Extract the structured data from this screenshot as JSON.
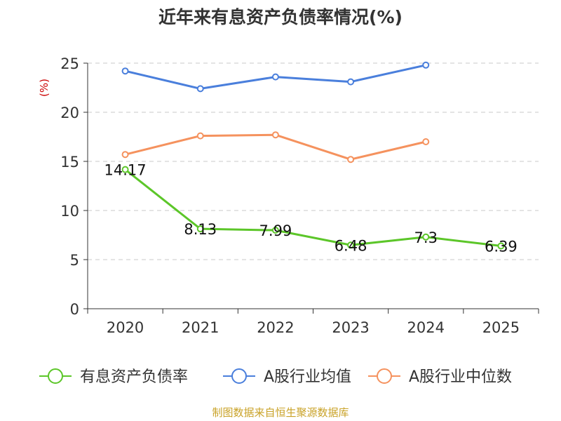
{
  "chart_data": {
    "type": "line",
    "title": "近年来有息资产负债率情况(%)",
    "ylabel": "(%)",
    "xlabel": "",
    "ylim": [
      0,
      25
    ],
    "yticks": [
      0,
      5,
      10,
      15,
      20,
      25
    ],
    "categories": [
      "2020",
      "2021",
      "2022",
      "2023",
      "2024",
      "2025"
    ],
    "grid": true,
    "legend_position": "bottom",
    "series": [
      {
        "name": "有息资产负债率",
        "color": "#5cc629",
        "values": [
          14.17,
          8.13,
          7.99,
          6.48,
          7.3,
          6.39
        ],
        "labels": [
          "14.17",
          "8.13",
          "7.99",
          "6.48",
          "7.3",
          "6.39"
        ]
      },
      {
        "name": "A股行业均值",
        "color": "#4a7fdc",
        "values": [
          24.2,
          22.4,
          23.6,
          23.1,
          24.8,
          null
        ]
      },
      {
        "name": "A股行业中位数",
        "color": "#f5925e",
        "values": [
          15.7,
          17.6,
          17.7,
          15.2,
          17.0,
          null
        ]
      }
    ],
    "ylabel_color": "#cc0000",
    "source": "制图数据来自恒生聚源数据库",
    "source_color": "#c9a227"
  }
}
